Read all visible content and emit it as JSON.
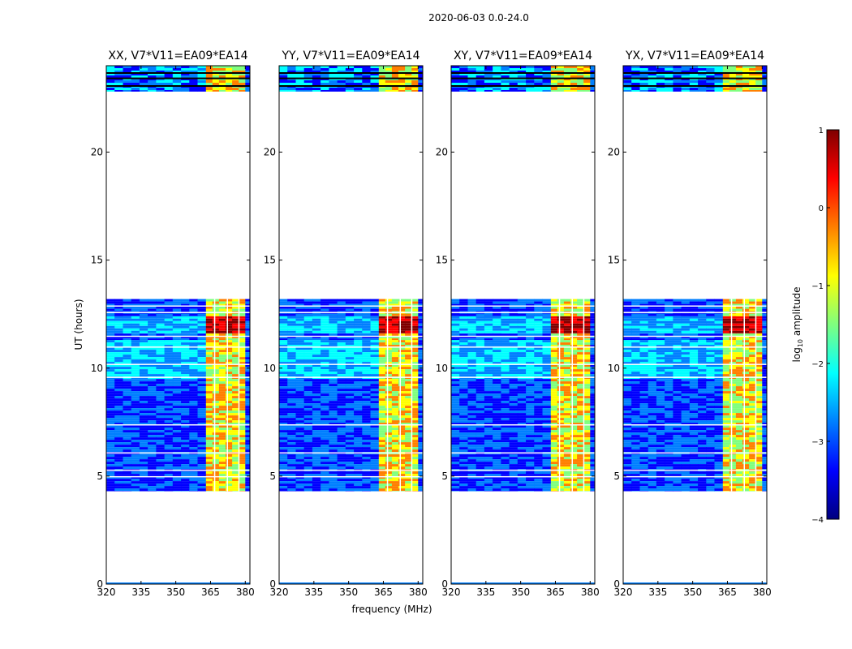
{
  "chart_data": {
    "type": "heatmap",
    "title": "2020-06-03 0.0-24.0",
    "xlabel": "frequency (MHz)",
    "ylabel": "UT (hours)",
    "xlim": [
      320,
      382
    ],
    "ylim": [
      0,
      24
    ],
    "xticks": [
      320,
      335,
      350,
      365,
      380
    ],
    "yticks": [
      0,
      5,
      10,
      15,
      20
    ],
    "panels": [
      {
        "title": "XX, V7*V11=EA09*EA14"
      },
      {
        "title": "YY, V7*V11=EA09*EA14"
      },
      {
        "title": "XY, V7*V11=EA09*EA14"
      },
      {
        "title": "YX, V7*V11=EA09*EA14"
      }
    ],
    "data_ranges_hours": [
      {
        "start": 4.3,
        "end": 9.5,
        "level": "low"
      },
      {
        "start": 9.5,
        "end": 11.3,
        "level": "mid"
      },
      {
        "start": 11.3,
        "end": 11.6,
        "level": "low"
      },
      {
        "start": 11.6,
        "end": 12.4,
        "level": "high"
      },
      {
        "start": 12.4,
        "end": 13.2,
        "level": "low"
      },
      {
        "start": 22.8,
        "end": 24.0,
        "level": "mixed"
      }
    ],
    "bright_band_mhz": [
      363,
      380
    ],
    "colorbar": {
      "label": "log10 amplitude",
      "label_main": "log",
      "label_sub": "10",
      "label_rest": " amplitude",
      "range": [
        -4,
        1
      ],
      "ticks": [
        "1",
        "0",
        "−1",
        "−2",
        "−3",
        "−4"
      ],
      "colormap": "jet",
      "colors": [
        "#00007f",
        "#0000ff",
        "#007fff",
        "#00ffff",
        "#7fff7f",
        "#ffff00",
        "#ff7f00",
        "#ff0000",
        "#7f0000"
      ]
    }
  }
}
